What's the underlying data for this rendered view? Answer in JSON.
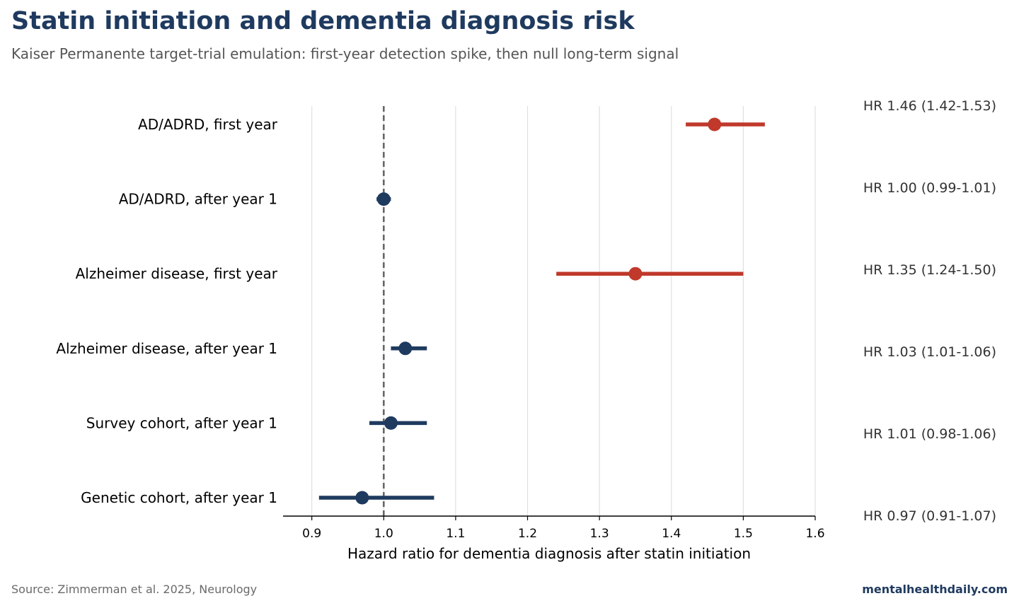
{
  "header": {
    "title": "Statin initiation and dementia diagnosis risk",
    "subtitle": "Kaiser Permanente target-trial emulation: first-year detection spike, then null long-term signal"
  },
  "footer": {
    "source": "Source: Zimmerman et al. 2025, Neurology",
    "brand": "mentalhealthdaily.com"
  },
  "colors": {
    "highlight": "#c0392b",
    "default": "#1f3a5f",
    "reference_line": "#666666",
    "grid": "#e0e0e0",
    "axis": "#000000",
    "annotation_text": "#333333"
  },
  "chart_data": {
    "type": "forest",
    "xlabel": "Hazard ratio for dementia diagnosis after statin initiation",
    "xlim": [
      0.86,
      1.6
    ],
    "xticks": [
      "0.9",
      "1.0",
      "1.1",
      "1.2",
      "1.3",
      "1.4",
      "1.5",
      "1.6"
    ],
    "reference_value": 1.0,
    "grid": "vertical",
    "rows": [
      {
        "label": "AD/ADRD, first year",
        "hr": 1.46,
        "lo": 1.42,
        "hi": 1.53,
        "annotation": "HR 1.46 (1.42-1.53)",
        "highlight": true
      },
      {
        "label": "AD/ADRD, after year 1",
        "hr": 1.0,
        "lo": 0.99,
        "hi": 1.01,
        "annotation": "HR 1.00 (0.99-1.01)",
        "highlight": false
      },
      {
        "label": "Alzheimer disease, first year",
        "hr": 1.35,
        "lo": 1.24,
        "hi": 1.5,
        "annotation": "HR 1.35 (1.24-1.50)",
        "highlight": true
      },
      {
        "label": "Alzheimer disease, after year 1",
        "hr": 1.03,
        "lo": 1.01,
        "hi": 1.06,
        "annotation": "HR 1.03 (1.01-1.06)",
        "highlight": false
      },
      {
        "label": "Survey cohort, after year 1",
        "hr": 1.01,
        "lo": 0.98,
        "hi": 1.06,
        "annotation": "HR 1.01 (0.98-1.06)",
        "highlight": false
      },
      {
        "label": "Genetic cohort, after year 1",
        "hr": 0.97,
        "lo": 0.91,
        "hi": 1.07,
        "annotation": "HR 0.97 (0.91-1.07)",
        "highlight": false
      }
    ]
  }
}
